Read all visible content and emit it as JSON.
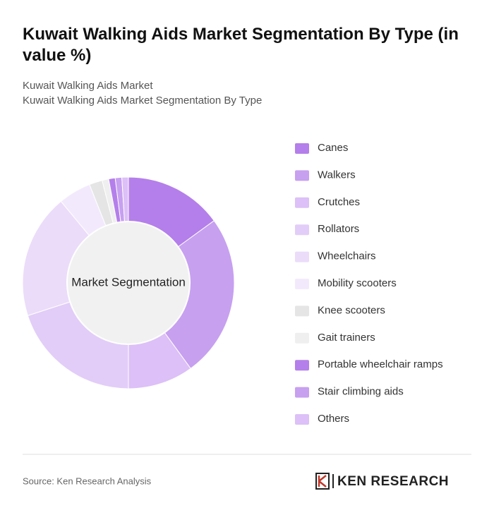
{
  "chart_data": {
    "type": "donut",
    "title": "Kuwait Walking Aids Market Segmentation By Type (in value %)",
    "subtitle": [
      "Kuwait Walking Aids Market",
      "Kuwait Walking Aids Market Segmentation By Type"
    ],
    "center_label": "Market Segmentation",
    "categories": [
      "Canes",
      "Walkers",
      "Crutches",
      "Rollators",
      "Wheelchairs",
      "Mobility scooters",
      "Knee scooters",
      "Gait trainers",
      "Portable wheelchair ramps",
      "Stair climbing aids",
      "Others"
    ],
    "values": [
      15,
      25,
      10,
      20,
      19,
      5,
      2,
      1,
      1,
      1,
      1
    ],
    "colors": [
      "#b47fea",
      "#c7a0f0",
      "#dcc0f7",
      "#e2cdf8",
      "#ebdcfa",
      "#f2eafc",
      "#e5e5e5",
      "#efefef",
      "#b47fea",
      "#c7a0f0",
      "#dcc0f7"
    ],
    "legend": "right",
    "source": "Source: Ken Research Analysis",
    "logo": "KEN RESEARCH"
  }
}
